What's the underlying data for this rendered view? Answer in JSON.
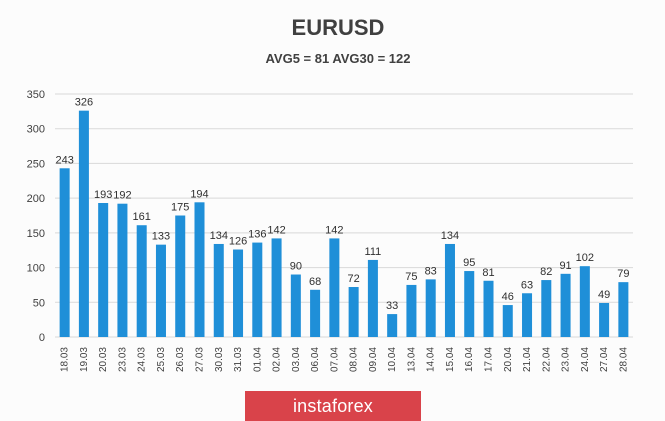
{
  "chart_data": {
    "type": "bar",
    "title": "EURUSD",
    "subtitle": "AVG5 = 81 AVG30 = 122",
    "categories": [
      "18.03",
      "19.03",
      "20.03",
      "23.03",
      "24.03",
      "25.03",
      "26.03",
      "27.03",
      "30.03",
      "31.03",
      "01.04",
      "02.04",
      "03.04",
      "06.04",
      "07.04",
      "08.04",
      "09.04",
      "10.04",
      "13.04",
      "14.04",
      "15.04",
      "16.04",
      "17.04",
      "20.04",
      "21.04",
      "22.04",
      "23.04",
      "24.04",
      "27.04",
      "28.04"
    ],
    "values": [
      243,
      326,
      193,
      192,
      161,
      133,
      175,
      194,
      134,
      126,
      136,
      142,
      90,
      68,
      142,
      72,
      111,
      33,
      75,
      83,
      134,
      95,
      81,
      46,
      63,
      82,
      91,
      102,
      49,
      79
    ],
    "ylim": [
      0,
      350
    ],
    "yticks": [
      0,
      50,
      100,
      150,
      200,
      250,
      300,
      350
    ],
    "grid": true,
    "bar_color": "#1f8fd8"
  },
  "watermark": "instaforex"
}
